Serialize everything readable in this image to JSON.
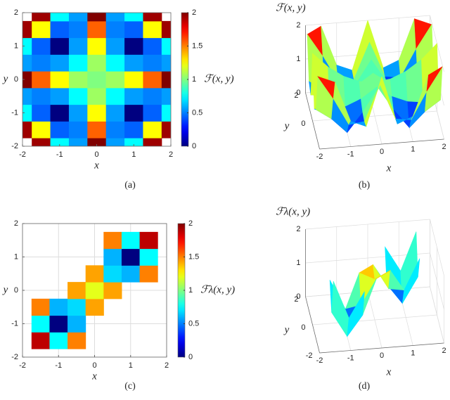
{
  "chart_data": [
    {
      "type": "heatmap",
      "caption": "(a)",
      "xlabel": "x",
      "ylabel": "y",
      "colorbar_label": "ℱ(x, y)",
      "colormap": "jet",
      "grid": false,
      "x": [
        -2,
        -1.5,
        -1,
        -0.5,
        0,
        0.5,
        1,
        1.5,
        2
      ],
      "y": [
        -2,
        -1.5,
        -1,
        -0.5,
        0,
        0.5,
        1,
        1.5,
        2
      ],
      "z": [
        [
          null,
          1.94,
          0.75,
          0.56,
          2,
          0.56,
          0.75,
          1.94,
          null
        ],
        [
          1.94,
          1.25,
          0.44,
          0.5,
          1.56,
          0.5,
          0.44,
          1.25,
          1.94
        ],
        [
          0.75,
          0.44,
          0,
          0.56,
          1.25,
          0.56,
          0,
          0.44,
          0.75
        ],
        [
          0.56,
          0.5,
          0.56,
          0.75,
          1.06,
          0.75,
          0.56,
          0.5,
          0.56
        ],
        [
          2,
          1.56,
          1.25,
          1.06,
          1,
          1.06,
          1.25,
          1.56,
          2
        ],
        [
          0.56,
          0.5,
          0.56,
          0.75,
          1.06,
          0.75,
          0.56,
          0.5,
          0.56
        ],
        [
          0.75,
          0.44,
          0,
          0.56,
          1.25,
          0.56,
          0,
          0.44,
          0.75
        ],
        [
          1.94,
          1.25,
          0.44,
          0.5,
          1.56,
          0.5,
          0.44,
          1.25,
          1.94
        ],
        [
          null,
          1.94,
          0.75,
          0.56,
          2,
          0.56,
          0.75,
          1.94,
          null
        ]
      ],
      "xlim": [
        -2,
        2
      ],
      "ylim": [
        -2,
        2
      ],
      "xticks": [
        -2,
        -1,
        0,
        1,
        2
      ],
      "yticks": [
        -2,
        -1,
        0,
        1,
        2
      ],
      "clim": [
        0,
        2
      ],
      "cticks": [
        0,
        0.5,
        1,
        1.5,
        2
      ]
    },
    {
      "type": "surface",
      "caption": "(b)",
      "title": "ℱ(x, y)",
      "xlabel": "x",
      "ylabel": "y",
      "colormap": "jet",
      "x": [
        -2,
        -1.5,
        -1,
        -0.5,
        0,
        0.5,
        1,
        1.5,
        2
      ],
      "y": [
        -2,
        -1.5,
        -1,
        -0.5,
        0,
        0.5,
        1,
        1.5,
        2
      ],
      "z": [
        [
          null,
          1.94,
          0.75,
          0.56,
          2,
          0.56,
          0.75,
          1.94,
          null
        ],
        [
          1.94,
          1.25,
          0.44,
          0.5,
          1.56,
          0.5,
          0.44,
          1.25,
          1.94
        ],
        [
          0.75,
          0.44,
          0,
          0.56,
          1.25,
          0.56,
          0,
          0.44,
          0.75
        ],
        [
          0.56,
          0.5,
          0.56,
          0.75,
          1.06,
          0.75,
          0.56,
          0.5,
          0.56
        ],
        [
          2,
          1.56,
          1.25,
          1.06,
          1,
          1.06,
          1.25,
          1.56,
          2
        ],
        [
          0.56,
          0.5,
          0.56,
          0.75,
          1.06,
          0.75,
          0.56,
          0.5,
          0.56
        ],
        [
          0.75,
          0.44,
          0,
          0.56,
          1.25,
          0.56,
          0,
          0.44,
          0.75
        ],
        [
          1.94,
          1.25,
          0.44,
          0.5,
          1.56,
          0.5,
          0.44,
          1.25,
          1.94
        ],
        [
          null,
          1.94,
          0.75,
          0.56,
          2,
          0.56,
          0.75,
          1.94,
          null
        ]
      ],
      "xlim": [
        -2,
        2
      ],
      "ylim": [
        -2,
        2
      ],
      "zlim": [
        0,
        2
      ],
      "xticks": [
        -2,
        -1,
        0,
        1,
        2
      ],
      "yticks": [
        0,
        2
      ],
      "zticks": [
        0,
        1,
        2
      ],
      "clim": [
        0,
        2
      ]
    },
    {
      "type": "heatmap",
      "caption": "(c)",
      "xlabel": "x",
      "ylabel": "y",
      "colorbar_label": "ℱλ(x, y)",
      "colormap": "jet",
      "grid": true,
      "x": [
        -2,
        -1.5,
        -1,
        -0.5,
        0,
        0.5,
        1,
        1.5,
        2
      ],
      "y": [
        -2,
        -1.5,
        -1,
        -0.5,
        0,
        0.5,
        1,
        1.5,
        2
      ],
      "z": [
        [
          null,
          null,
          null,
          null,
          null,
          null,
          null,
          null,
          null
        ],
        [
          null,
          1.88,
          0.75,
          1.5,
          null,
          null,
          null,
          null,
          null
        ],
        [
          null,
          0.75,
          0,
          0.6,
          null,
          null,
          null,
          null,
          null
        ],
        [
          null,
          1.5,
          0.6,
          0.68,
          1.43,
          null,
          null,
          null,
          null
        ],
        [
          null,
          null,
          null,
          1.43,
          1.2,
          1.43,
          null,
          null,
          null
        ],
        [
          null,
          null,
          null,
          null,
          1.43,
          0.68,
          0.6,
          1.5,
          null
        ],
        [
          null,
          null,
          null,
          null,
          null,
          0.6,
          0,
          0.75,
          null
        ],
        [
          null,
          null,
          null,
          null,
          null,
          1.5,
          0.75,
          1.88,
          null
        ],
        [
          null,
          null,
          null,
          null,
          null,
          null,
          null,
          null,
          null
        ]
      ],
      "xlim": [
        -2,
        2
      ],
      "ylim": [
        -2,
        2
      ],
      "xticks": [
        -2,
        -1,
        0,
        1,
        2
      ],
      "yticks": [
        -2,
        -1,
        0,
        1,
        2
      ],
      "clim": [
        0,
        2
      ],
      "cticks": [
        0,
        0.5,
        1,
        1.5,
        2
      ]
    },
    {
      "type": "surface",
      "caption": "(d)",
      "title": "ℱλ(x, y)",
      "xlabel": "x",
      "ylabel": "y",
      "colormap": "jet",
      "x": [
        -2,
        -1.5,
        -1,
        -0.5,
        0,
        0.5,
        1,
        1.5,
        2
      ],
      "y": [
        -2,
        -1.5,
        -1,
        -0.5,
        0,
        0.5,
        1,
        1.5,
        2
      ],
      "z": [
        [
          null,
          null,
          null,
          null,
          null,
          null,
          null,
          null,
          null
        ],
        [
          null,
          1.88,
          0.75,
          1.5,
          null,
          null,
          null,
          null,
          null
        ],
        [
          null,
          0.75,
          0,
          0.6,
          null,
          null,
          null,
          null,
          null
        ],
        [
          null,
          1.5,
          0.6,
          0.68,
          1.43,
          null,
          null,
          null,
          null
        ],
        [
          null,
          null,
          null,
          1.43,
          1.2,
          1.43,
          null,
          null,
          null
        ],
        [
          null,
          null,
          null,
          null,
          1.43,
          0.68,
          0.6,
          1.5,
          null
        ],
        [
          null,
          null,
          null,
          null,
          null,
          0.6,
          0,
          0.75,
          null
        ],
        [
          null,
          null,
          null,
          null,
          null,
          1.5,
          0.75,
          1.88,
          null
        ],
        [
          null,
          null,
          null,
          null,
          null,
          null,
          null,
          null,
          null
        ]
      ],
      "xlim": [
        -2,
        2
      ],
      "ylim": [
        -2,
        2
      ],
      "zlim": [
        0,
        2
      ],
      "xticks": [
        -2,
        -1,
        0,
        1,
        2
      ],
      "yticks": [
        -2,
        0,
        2
      ],
      "zticks": [
        0,
        1,
        2
      ],
      "clim": [
        0,
        2
      ]
    }
  ]
}
